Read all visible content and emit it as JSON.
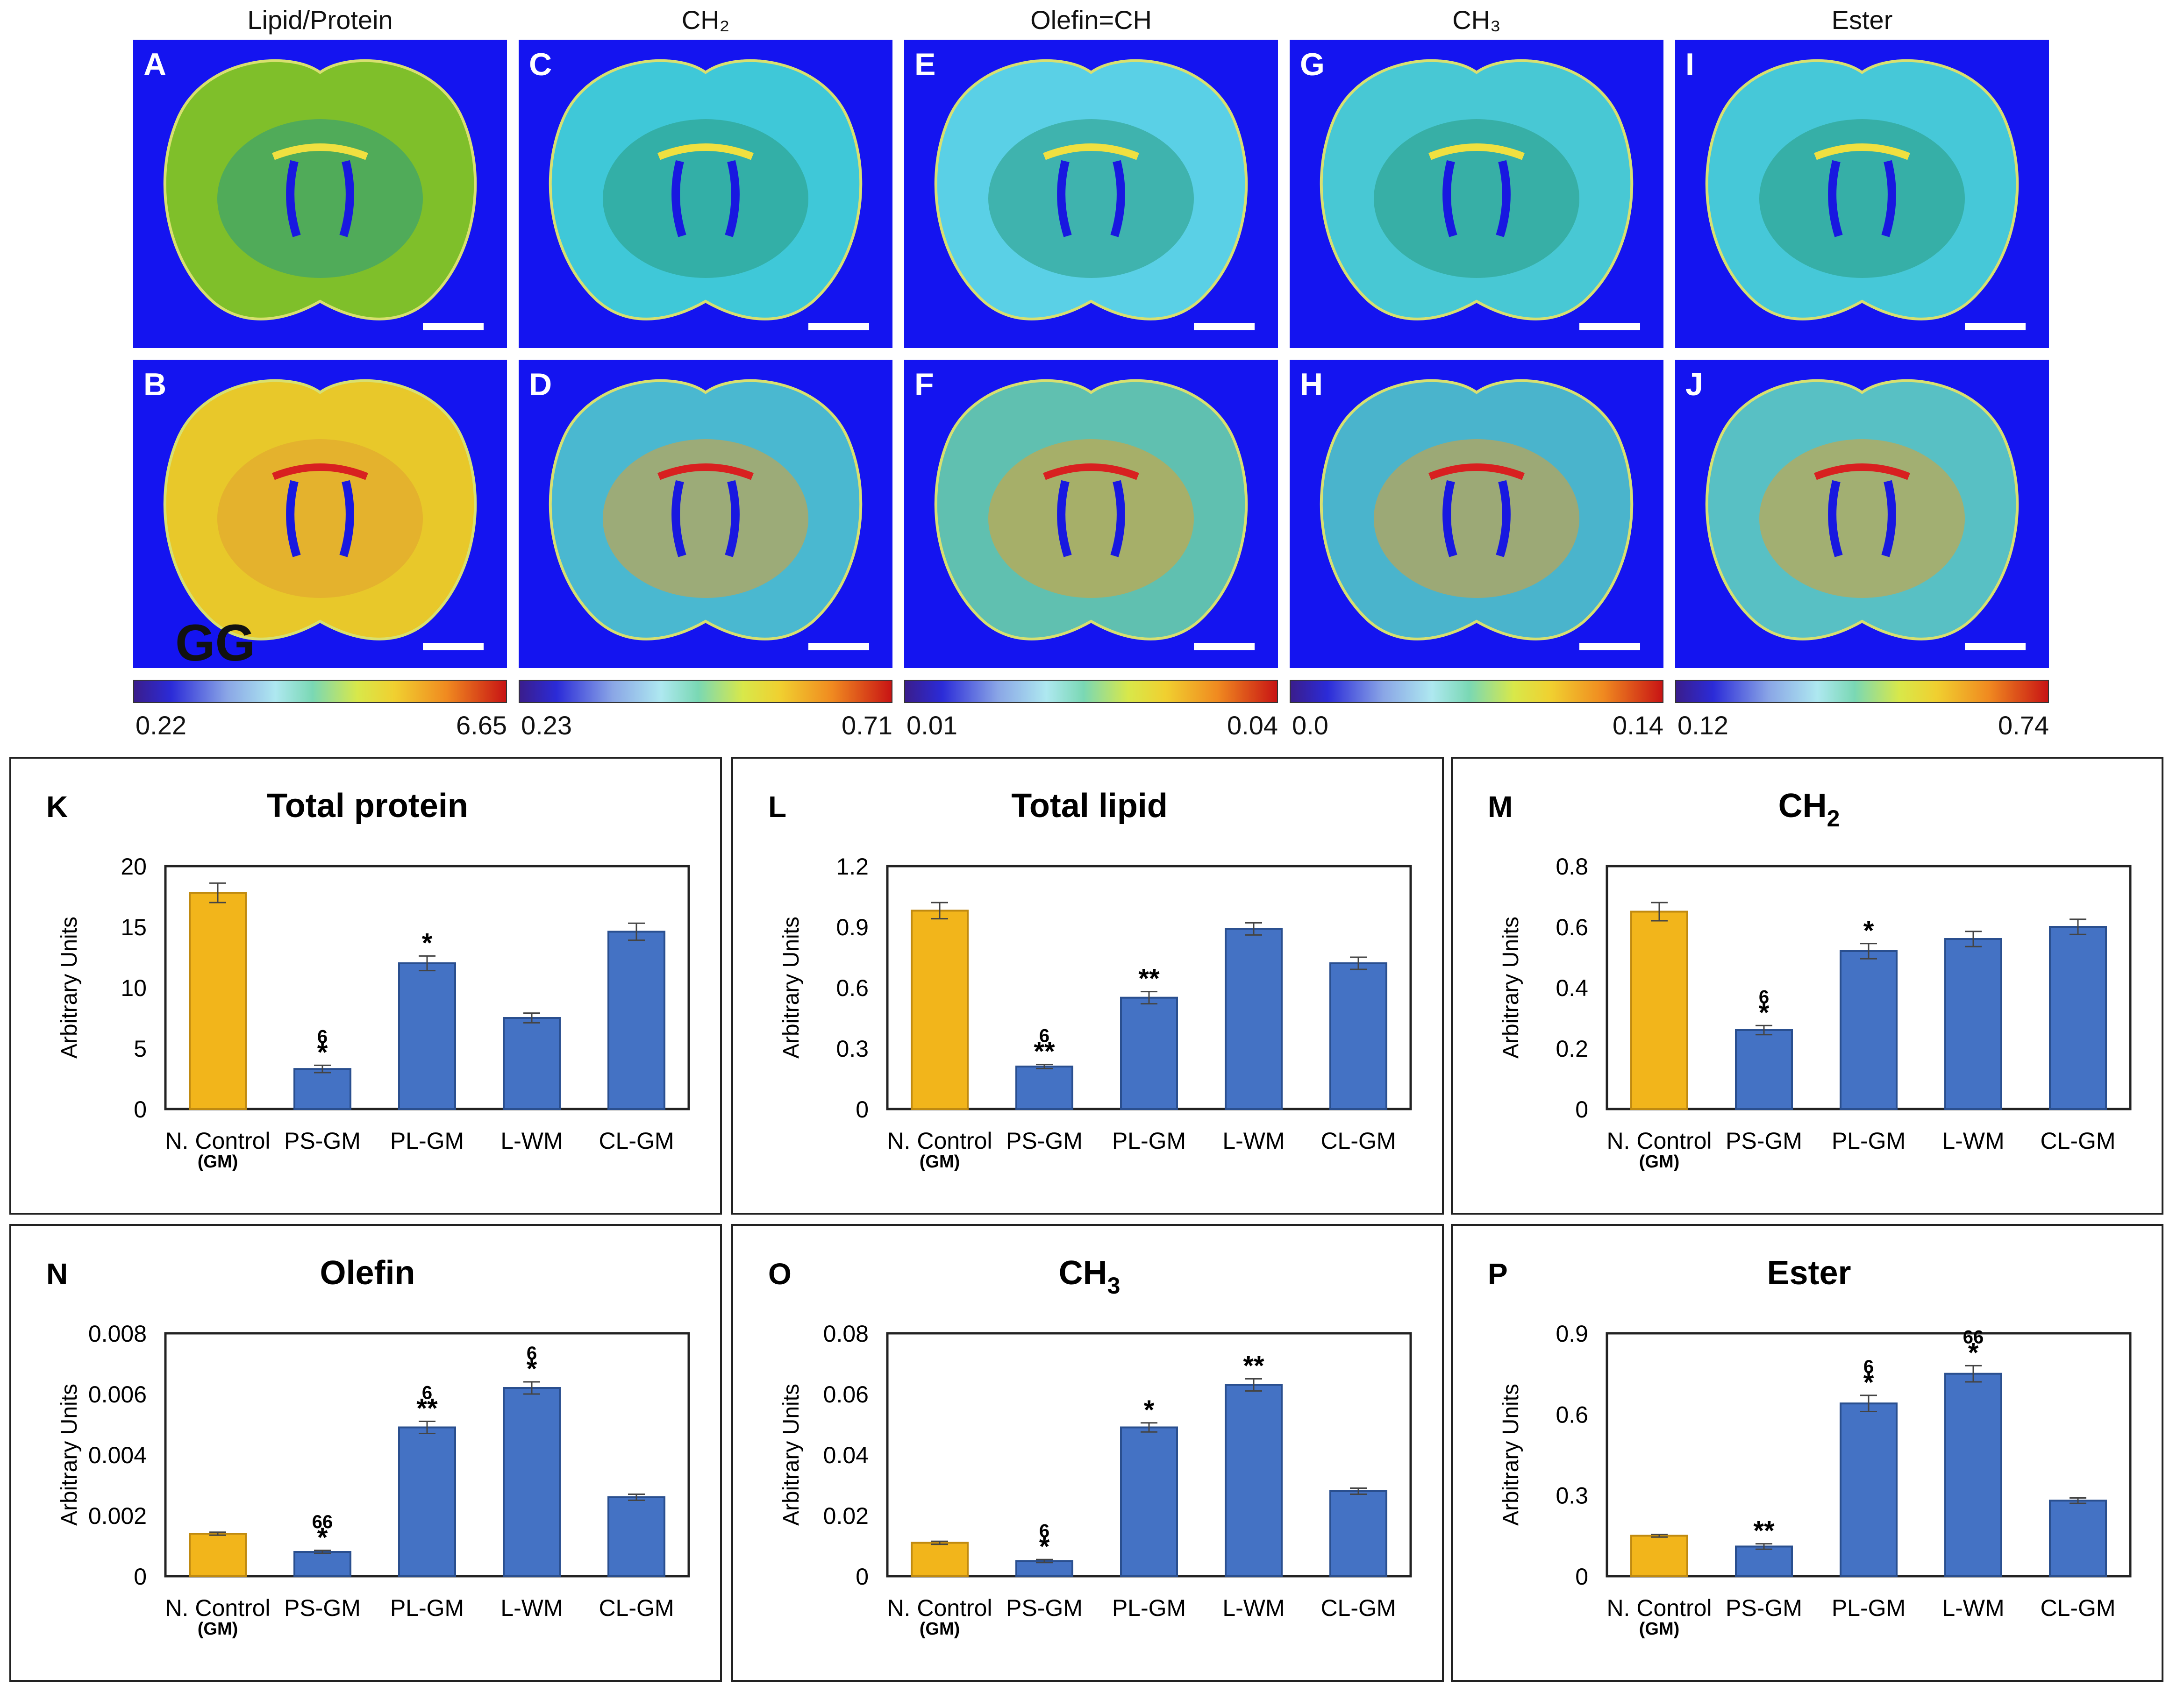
{
  "image_panels": [
    {
      "title": "Lipid/Protein",
      "top_label": "A",
      "bottom_label": "B",
      "cb_min": "0.22",
      "cb_max": "6.65",
      "top_color": "#7fbf2a",
      "bottom_color": "#e8c82a"
    },
    {
      "title": "CH₂",
      "top_label": "C",
      "bottom_label": "D",
      "cb_min": "0.23",
      "cb_max": "0.71",
      "top_color": "#3fc8d8",
      "bottom_color": "#4ab8d0"
    },
    {
      "title": "Olefin=CH",
      "top_label": "E",
      "bottom_label": "F",
      "cb_min": "0.01",
      "cb_max": "0.04",
      "top_color": "#5ad0e6",
      "bottom_color": "#60c0b0"
    },
    {
      "title": "CH₃",
      "top_label": "G",
      "bottom_label": "H",
      "cb_min": "0.0",
      "cb_max": "0.14",
      "top_color": "#48c8d4",
      "bottom_color": "#4ab4cc"
    },
    {
      "title": "Ester",
      "top_label": "I",
      "bottom_label": "J",
      "cb_min": "0.12",
      "cb_max": "0.74",
      "top_color": "#46c8d8",
      "bottom_color": "#58c0c4"
    }
  ],
  "watermark": "GG",
  "chart_data": [
    {
      "label": "K",
      "type": "bar",
      "title": "Total protein",
      "ylabel": "Arbitrary Units",
      "categories": [
        "N. Control",
        "PS-GM",
        "PL-GM",
        "L-WM",
        "CL-GM"
      ],
      "category_sub": [
        "(GM)",
        "",
        "",
        "",
        ""
      ],
      "values": [
        17.8,
        3.3,
        12,
        7.5,
        14.6
      ],
      "errors": [
        0.8,
        0.3,
        0.6,
        0.4,
        0.7
      ],
      "ylim": [
        0,
        20
      ],
      "yticks": [
        "0",
        "5",
        "10",
        "15",
        "20"
      ],
      "annotations": [
        [
          "",
          ""
        ],
        [
          "6",
          "*"
        ],
        [
          "",
          "*"
        ],
        [
          "",
          ""
        ],
        [
          "",
          ""
        ]
      ],
      "colors": [
        "#f2b51b",
        "#4472c4",
        "#4472c4",
        "#4472c4",
        "#4472c4"
      ]
    },
    {
      "label": "L",
      "type": "bar",
      "title": "Total lipid",
      "ylabel": "Arbitrary Units",
      "categories": [
        "N. Control",
        "PS-GM",
        "PL-GM",
        "L-WM",
        "CL-GM"
      ],
      "category_sub": [
        "(GM)",
        "",
        "",
        "",
        ""
      ],
      "values": [
        0.98,
        0.21,
        0.55,
        0.89,
        0.72
      ],
      "errors": [
        0.04,
        0.01,
        0.03,
        0.03,
        0.03
      ],
      "ylim": [
        0,
        1.2
      ],
      "yticks": [
        "0",
        "0.3",
        "0.6",
        "0.9",
        "1.2"
      ],
      "annotations": [
        [
          "",
          ""
        ],
        [
          "6",
          "**"
        ],
        [
          "",
          "**"
        ],
        [
          "",
          ""
        ],
        [
          "",
          ""
        ]
      ],
      "colors": [
        "#f2b51b",
        "#4472c4",
        "#4472c4",
        "#4472c4",
        "#4472c4"
      ]
    },
    {
      "label": "M",
      "type": "bar",
      "title": "CH",
      "title_sub": "2",
      "ylabel": "Arbitrary Units",
      "categories": [
        "N. Control",
        "PS-GM",
        "PL-GM",
        "L-WM",
        "CL-GM"
      ],
      "category_sub": [
        "(GM)",
        "",
        "",
        "",
        ""
      ],
      "values": [
        0.65,
        0.26,
        0.52,
        0.56,
        0.6
      ],
      "errors": [
        0.03,
        0.015,
        0.025,
        0.025,
        0.025
      ],
      "ylim": [
        0,
        0.8
      ],
      "yticks": [
        "0",
        "0.2",
        "0.4",
        "0.6",
        "0.8"
      ],
      "annotations": [
        [
          "",
          ""
        ],
        [
          "6",
          "*"
        ],
        [
          "",
          "*"
        ],
        [
          "",
          ""
        ],
        [
          "",
          ""
        ]
      ],
      "colors": [
        "#f2b51b",
        "#4472c4",
        "#4472c4",
        "#4472c4",
        "#4472c4"
      ]
    },
    {
      "label": "N",
      "type": "bar",
      "title": "Olefin",
      "ylabel": "Arbitrary Units",
      "categories": [
        "N. Control",
        "PS-GM",
        "PL-GM",
        "L-WM",
        "CL-GM"
      ],
      "category_sub": [
        "(GM)",
        "",
        "",
        "",
        ""
      ],
      "values": [
        0.0014,
        0.0008,
        0.0049,
        0.0062,
        0.0026
      ],
      "errors": [
        5e-05,
        5e-05,
        0.0002,
        0.0002,
        0.0001
      ],
      "ylim": [
        0,
        0.008
      ],
      "yticks": [
        "0",
        "0.002",
        "0.004",
        "0.006",
        "0.008"
      ],
      "annotations": [
        [
          "",
          ""
        ],
        [
          "66",
          "*"
        ],
        [
          "6",
          "**"
        ],
        [
          "6",
          "*"
        ],
        [
          "",
          ""
        ]
      ],
      "colors": [
        "#f2b51b",
        "#4472c4",
        "#4472c4",
        "#4472c4",
        "#4472c4"
      ]
    },
    {
      "label": "O",
      "type": "bar",
      "title": "CH",
      "title_sub": "3",
      "ylabel": "Arbitrary Units",
      "categories": [
        "N. Control",
        "PS-GM",
        "PL-GM",
        "L-WM",
        "CL-GM"
      ],
      "category_sub": [
        "(GM)",
        "",
        "",
        "",
        ""
      ],
      "values": [
        0.011,
        0.005,
        0.049,
        0.063,
        0.028
      ],
      "errors": [
        0.0005,
        0.0005,
        0.0015,
        0.002,
        0.001
      ],
      "ylim": [
        0,
        0.08
      ],
      "yticks": [
        "0",
        "0.02",
        "0.04",
        "0.06",
        "0.08"
      ],
      "annotations": [
        [
          "",
          ""
        ],
        [
          "6",
          "*"
        ],
        [
          "",
          "*"
        ],
        [
          "",
          "**"
        ],
        [
          "",
          ""
        ]
      ],
      "colors": [
        "#f2b51b",
        "#4472c4",
        "#4472c4",
        "#4472c4",
        "#4472c4"
      ]
    },
    {
      "label": "P",
      "type": "bar",
      "title": "Ester",
      "ylabel": "Arbitrary Units",
      "categories": [
        "N. Control",
        "PS-GM",
        "PL-GM",
        "L-WM",
        "CL-GM"
      ],
      "category_sub": [
        "(GM)",
        "",
        "",
        "",
        ""
      ],
      "values": [
        0.15,
        0.11,
        0.64,
        0.75,
        0.28
      ],
      "errors": [
        0.005,
        0.01,
        0.03,
        0.03,
        0.01
      ],
      "ylim": [
        0,
        0.9
      ],
      "yticks": [
        "0",
        "0.3",
        "0.6",
        "0.9"
      ],
      "annotations": [
        [
          "",
          ""
        ],
        [
          "",
          "**"
        ],
        [
          "6",
          "*"
        ],
        [
          "66",
          "*"
        ],
        [
          "",
          ""
        ]
      ],
      "colors": [
        "#f2b51b",
        "#4472c4",
        "#4472c4",
        "#4472c4",
        "#4472c4"
      ]
    }
  ]
}
